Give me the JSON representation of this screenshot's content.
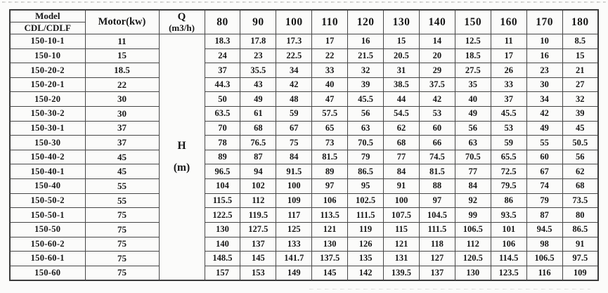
{
  "table": {
    "header": {
      "model": "Model",
      "model_series": "CDL/CDLF",
      "motor": "Motor(kw)",
      "flow_label": "Q",
      "flow_unit": "(m3/h)",
      "flow_values": [
        "80",
        "90",
        "100",
        "110",
        "120",
        "130",
        "140",
        "150",
        "160",
        "170",
        "180"
      ]
    },
    "head_label": "H",
    "head_unit": "(m)",
    "rows": [
      {
        "model": "150-10-1",
        "motor": "11",
        "heads": [
          "18.3",
          "17.8",
          "17.3",
          "17",
          "16",
          "15",
          "14",
          "12.5",
          "11",
          "10",
          "8.5"
        ]
      },
      {
        "model": "150-10",
        "motor": "15",
        "heads": [
          "24",
          "23",
          "22.5",
          "22",
          "21.5",
          "20.5",
          "20",
          "18.5",
          "17",
          "16",
          "15"
        ]
      },
      {
        "model": "150-20-2",
        "motor": "18.5",
        "heads": [
          "37",
          "35.5",
          "34",
          "33",
          "32",
          "31",
          "29",
          "27.5",
          "26",
          "23",
          "21"
        ]
      },
      {
        "model": "150-20-1",
        "motor": "22",
        "heads": [
          "44.3",
          "43",
          "42",
          "40",
          "39",
          "38.5",
          "37.5",
          "35",
          "33",
          "30",
          "27"
        ]
      },
      {
        "model": "150-20",
        "motor": "30",
        "heads": [
          "50",
          "49",
          "48",
          "47",
          "45.5",
          "44",
          "42",
          "40",
          "37",
          "34",
          "32"
        ]
      },
      {
        "model": "150-30-2",
        "motor": "30",
        "heads": [
          "63.5",
          "61",
          "59",
          "57.5",
          "56",
          "54.5",
          "53",
          "49",
          "45.5",
          "42",
          "39"
        ]
      },
      {
        "model": "150-30-1",
        "motor": "37",
        "heads": [
          "70",
          "68",
          "67",
          "65",
          "63",
          "62",
          "60",
          "56",
          "53",
          "49",
          "45"
        ]
      },
      {
        "model": "150-30",
        "motor": "37",
        "heads": [
          "78",
          "76.5",
          "75",
          "73",
          "70.5",
          "68",
          "66",
          "63",
          "59",
          "55",
          "50.5"
        ]
      },
      {
        "model": "150-40-2",
        "motor": "45",
        "heads": [
          "89",
          "87",
          "84",
          "81.5",
          "79",
          "77",
          "74.5",
          "70.5",
          "65.5",
          "60",
          "56"
        ]
      },
      {
        "model": "150-40-1",
        "motor": "45",
        "heads": [
          "96.5",
          "94",
          "91.5",
          "89",
          "86.5",
          "84",
          "81.5",
          "77",
          "72.5",
          "67",
          "62"
        ]
      },
      {
        "model": "150-40",
        "motor": "55",
        "heads": [
          "104",
          "102",
          "100",
          "97",
          "95",
          "91",
          "88",
          "84",
          "79.5",
          "74",
          "68"
        ]
      },
      {
        "model": "150-50-2",
        "motor": "55",
        "heads": [
          "115.5",
          "112",
          "109",
          "106",
          "102.5",
          "100",
          "97",
          "92",
          "86",
          "79",
          "73.5"
        ]
      },
      {
        "model": "150-50-1",
        "motor": "75",
        "heads": [
          "122.5",
          "119.5",
          "117",
          "113.5",
          "111.5",
          "107.5",
          "104.5",
          "99",
          "93.5",
          "87",
          "80"
        ]
      },
      {
        "model": "150-50",
        "motor": "75",
        "heads": [
          "130",
          "127.5",
          "125",
          "121",
          "119",
          "115",
          "111.5",
          "106.5",
          "101",
          "94.5",
          "86.5"
        ]
      },
      {
        "model": "150-60-2",
        "motor": "75",
        "heads": [
          "140",
          "137",
          "133",
          "130",
          "126",
          "121",
          "118",
          "112",
          "106",
          "98",
          "91"
        ]
      },
      {
        "model": "150-60-1",
        "motor": "75",
        "heads": [
          "148.5",
          "145",
          "141.7",
          "137.5",
          "135",
          "131",
          "127",
          "120.5",
          "114.5",
          "106.5",
          "97.5"
        ]
      },
      {
        "model": "150-60",
        "motor": "75",
        "heads": [
          "157",
          "153",
          "149",
          "145",
          "142",
          "139.5",
          "137",
          "130",
          "123.5",
          "116",
          "109"
        ]
      }
    ]
  },
  "colors": {
    "border": "#474747",
    "text": "#161616",
    "background": "#fbfbfa"
  }
}
